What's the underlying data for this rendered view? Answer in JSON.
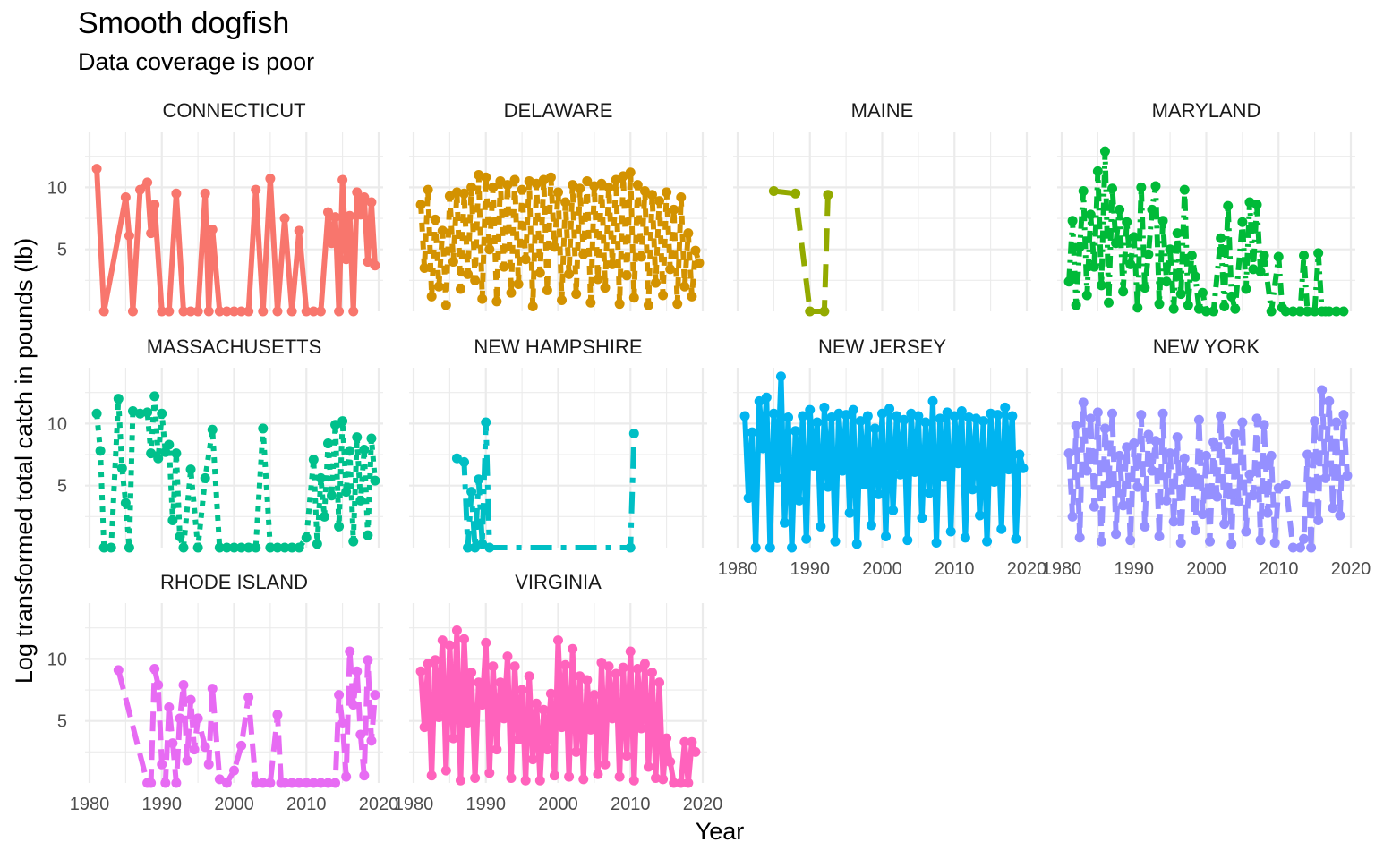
{
  "chart_data": {
    "type": "line",
    "title": "Smooth dogfish",
    "subtitle": "Data coverage is poor",
    "xlabel": "Year",
    "ylabel": "Log transformed  total catch in pounds (lb)",
    "x_ticks": [
      1980,
      1990,
      2000,
      2010,
      2020
    ],
    "y_ticks": [
      5,
      10
    ],
    "xlim": [
      1980,
      2020
    ],
    "ylim": [
      0,
      14.5
    ],
    "grid": true,
    "legend": "none",
    "panels": [
      {
        "name": "CONNECTICUT",
        "color": "#F8766D",
        "dash": "solid",
        "x": [
          1981,
          1982,
          1985,
          1985.5,
          1986,
          1987,
          1988,
          1988.5,
          1989,
          1990,
          1991,
          1992,
          1993,
          1994,
          1995,
          1996,
          1996.5,
          1997,
          1998,
          1999,
          2000,
          2001,
          2002,
          2003,
          2004,
          2005,
          2006,
          2007,
          2008,
          2009,
          2010,
          2011,
          2012,
          2013,
          2013.5,
          2014,
          2014.5,
          2015,
          2015.5,
          2016,
          2016.5,
          2017,
          2017.5,
          2018,
          2018.5,
          2019,
          2019.5
        ],
        "y": [
          11.5,
          0,
          9.2,
          6.1,
          0,
          9.8,
          10.4,
          6.3,
          8.6,
          0,
          0,
          9.5,
          0,
          0,
          0,
          9.5,
          0,
          6.6,
          0,
          0,
          0,
          0,
          0,
          9.8,
          0,
          10.7,
          0,
          7.5,
          0,
          6.5,
          0,
          0,
          0,
          8,
          5.5,
          7.6,
          0,
          10.6,
          4.2,
          7.7,
          0,
          9.6,
          7.8,
          9.2,
          4,
          8.8,
          3.7
        ]
      },
      {
        "name": "DELAWARE",
        "color": "#D39200",
        "dash": "10,10",
        "x": [
          1981,
          1981.5,
          1982,
          1982.5,
          1983,
          1983.5,
          1984,
          1984.5,
          1985,
          1985.5,
          1986,
          1986.5,
          1987,
          1987.5,
          1988,
          1988.5,
          1989,
          1989.5,
          1990,
          1990.5,
          1991,
          1991.5,
          1992,
          1992.5,
          1993,
          1993.5,
          1994,
          1994.5,
          1995,
          1995.5,
          1996,
          1996.5,
          1997,
          1997.5,
          1998,
          1998.5,
          1999,
          1999.5,
          2000,
          2000.5,
          2001,
          2001.5,
          2002,
          2002.5,
          2003,
          2003.5,
          2004,
          2004.5,
          2005,
          2005.5,
          2006,
          2006.5,
          2007,
          2007.5,
          2008,
          2008.5,
          2009,
          2009.5,
          2010,
          2010.5,
          2011,
          2011.5,
          2012,
          2012.5,
          2013,
          2013.5,
          2014,
          2014.5,
          2015,
          2015.5,
          2016,
          2016.5,
          2017,
          2017.5,
          2018,
          2018.5,
          2019,
          2019.5
        ],
        "y": [
          8.6,
          3.5,
          9.8,
          1.2,
          7.4,
          2,
          6.5,
          0.5,
          9.3,
          4,
          9.6,
          1.8,
          9.5,
          3,
          10,
          2.5,
          11,
          1,
          10.8,
          5,
          10,
          0.8,
          10.5,
          3.6,
          10.2,
          1.5,
          10.6,
          2.2,
          9.8,
          4.2,
          10.5,
          0.4,
          10.3,
          3.1,
          10.6,
          1.7,
          10.8,
          5.2,
          9.6,
          0.9,
          8.8,
          3,
          10.2,
          1.4,
          9.9,
          4.6,
          10.5,
          0.7,
          10.1,
          2.6,
          10.3,
          1.9,
          10,
          3.8,
          10.6,
          0.6,
          10.9,
          2.9,
          11.2,
          1.1,
          10.2,
          4.4,
          9.7,
          0.5,
          9.4,
          2.3,
          8.9,
          1.3,
          9.6,
          3.4,
          8.2,
          0.6,
          9.2,
          2,
          6.3,
          1.2,
          4.9,
          3.9
        ]
      },
      {
        "name": "MAINE",
        "color": "#93AA00",
        "dash": "26,14",
        "x": [
          1985,
          1988,
          1990,
          1992,
          1992.5
        ],
        "y": [
          9.7,
          9.5,
          0,
          0,
          9.4
        ]
      },
      {
        "name": "MARYLAND",
        "color": "#00BA38",
        "dash": "14,7,3,7",
        "x": [
          1981,
          1981.5,
          1982,
          1982.5,
          1983,
          1983.5,
          1984,
          1984.5,
          1985,
          1985.5,
          1986,
          1986.5,
          1987,
          1987.5,
          1988,
          1988.5,
          1989,
          1989.5,
          1990,
          1990.5,
          1991,
          1991.5,
          1992,
          1992.5,
          1993,
          1993.5,
          1994,
          1994.5,
          1995,
          1995.5,
          1996,
          1996.5,
          1997,
          1997.5,
          1998,
          1998.5,
          1999,
          1999.5,
          2000,
          2001,
          2002,
          2002.5,
          2003,
          2003.5,
          2004,
          2005,
          2005.5,
          2006,
          2006.5,
          2007,
          2007.5,
          2008,
          2009,
          2010,
          2010.5,
          2011,
          2012,
          2013,
          2013.5,
          2014,
          2015,
          2015.5,
          2016,
          2016.5,
          2017,
          2018,
          2019
        ],
        "y": [
          2.4,
          7.3,
          0.5,
          5.2,
          9.7,
          1.3,
          7.8,
          3.6,
          11.3,
          2.1,
          12.9,
          0.7,
          9.9,
          5.5,
          8.2,
          1.6,
          7.2,
          3.8,
          6,
          0.3,
          10,
          1.9,
          4.6,
          8.2,
          10.1,
          0.6,
          7.3,
          2.4,
          5,
          0.2,
          6.3,
          1.4,
          9.8,
          0.5,
          4.5,
          2.8,
          0.2,
          1.5,
          0,
          0,
          5.9,
          0.4,
          8.5,
          1.2,
          0.2,
          7.2,
          1.8,
          8.8,
          3.4,
          8.6,
          3.2,
          4.5,
          0,
          4.4,
          0.3,
          0,
          0,
          0,
          4.5,
          0,
          0,
          4.7,
          0,
          0,
          0,
          0,
          0
        ]
      },
      {
        "name": "MASSACHUSETTS",
        "color": "#00C08B",
        "dash": "6,7",
        "x": [
          1981,
          1981.5,
          1982,
          1983,
          1984,
          1984.5,
          1985,
          1985.5,
          1986,
          1987,
          1988,
          1988.5,
          1989,
          1989.5,
          1990,
          1990.5,
          1991,
          1991.5,
          1992,
          1992.5,
          1993,
          1994,
          1995,
          1996,
          1997,
          1998,
          1999,
          2000,
          2001,
          2002,
          2003,
          2004,
          2005,
          2006,
          2007,
          2008,
          2009,
          2010,
          2011,
          2011.5,
          2012,
          2012.5,
          2013,
          2013.5,
          2014,
          2014.5,
          2015,
          2015.5,
          2016,
          2016.5,
          2017,
          2017.5,
          2018,
          2018.5,
          2019,
          2019.5
        ],
        "y": [
          10.8,
          7.8,
          0,
          0,
          12,
          6.4,
          3.6,
          0,
          11,
          10.8,
          10.9,
          7.6,
          12.2,
          7.2,
          10.8,
          7.7,
          8.3,
          2.2,
          7.6,
          0.9,
          0,
          6.3,
          0,
          5.6,
          9.5,
          0,
          0,
          0,
          0,
          0,
          0,
          9.6,
          0,
          0,
          0,
          0,
          0,
          0.8,
          7.1,
          0.3,
          5.6,
          2.5,
          8.4,
          4.2,
          9.9,
          1.7,
          10.2,
          4.5,
          7.8,
          0.5,
          8.9,
          3.8,
          7.9,
          1,
          8.8,
          5.4
        ]
      },
      {
        "name": "NEW HAMPSHIRE",
        "color": "#00BFC4",
        "dash": "24,10,6,10",
        "x": [
          1986,
          1987,
          1987.5,
          1988,
          1988.5,
          1989,
          1989.5,
          1990,
          1990.5,
          2010,
          2010.5
        ],
        "y": [
          7.2,
          6.9,
          0,
          4.5,
          0,
          5.5,
          0.3,
          10.1,
          0,
          0,
          9.2
        ]
      },
      {
        "name": "NEW JERSEY",
        "color": "#00B4F0",
        "dash": "solid",
        "x": [
          1981,
          1981.5,
          1982,
          1982.5,
          1983,
          1983.5,
          1984,
          1984.5,
          1985,
          1985.5,
          1986,
          1986.5,
          1987,
          1987.5,
          1988,
          1988.5,
          1989,
          1989.5,
          1990,
          1990.5,
          1991,
          1991.5,
          1992,
          1992.5,
          1993,
          1993.5,
          1994,
          1994.5,
          1995,
          1995.5,
          1996,
          1996.5,
          1997,
          1997.5,
          1998,
          1998.5,
          1999,
          1999.5,
          2000,
          2000.5,
          2001,
          2001.5,
          2002,
          2002.5,
          2003,
          2003.5,
          2004,
          2004.5,
          2005,
          2005.5,
          2006,
          2006.5,
          2007,
          2007.5,
          2008,
          2008.5,
          2009,
          2009.5,
          2010,
          2010.5,
          2011,
          2011.5,
          2012,
          2012.5,
          2013,
          2013.5,
          2014,
          2014.5,
          2015,
          2015.5,
          2016,
          2016.5,
          2017,
          2017.5,
          2018,
          2018.5,
          2019,
          2019.5
        ],
        "y": [
          10.6,
          4,
          9.3,
          0,
          11.8,
          8,
          12.1,
          0,
          10.8,
          5.6,
          13.8,
          2,
          10.5,
          0,
          9.4,
          3.8,
          10.6,
          0.7,
          11.1,
          6.6,
          10.1,
          1.7,
          11.3,
          4.9,
          10.5,
          0.5,
          10.8,
          6.2,
          10.7,
          2.8,
          11.1,
          0.3,
          10.2,
          5.1,
          10.6,
          1.8,
          9.6,
          4.3,
          10.8,
          0.9,
          11.2,
          3,
          10.6,
          5.9,
          10.3,
          0.6,
          10.8,
          6.1,
          10.6,
          2.4,
          10.1,
          4.4,
          11.8,
          0.4,
          10.4,
          5.7,
          10.9,
          1.3,
          10.6,
          6.8,
          11,
          0.8,
          10.5,
          4.7,
          10.4,
          2.6,
          10.2,
          0.5,
          10.8,
          5.3,
          10.7,
          1.5,
          11.3,
          6.3,
          10.6,
          0.7,
          7.5,
          6.4
        ]
      },
      {
        "name": "NEW YORK",
        "color": "#9590FF",
        "dash": "18,10",
        "x": [
          1981,
          1981.5,
          1982,
          1982.5,
          1983,
          1983.5,
          1984,
          1984.5,
          1985,
          1985.5,
          1986,
          1986.5,
          1987,
          1987.5,
          1988,
          1988.5,
          1989,
          1989.5,
          1990,
          1990.5,
          1991,
          1991.5,
          1992,
          1992.5,
          1993,
          1993.5,
          1994,
          1994.5,
          1995,
          1995.5,
          1996,
          1996.5,
          1997,
          1997.5,
          1998,
          1998.5,
          1999,
          1999.5,
          2000,
          2000.5,
          2001,
          2001.5,
          2002,
          2002.5,
          2003,
          2003.5,
          2004,
          2004.5,
          2005,
          2005.5,
          2006,
          2006.5,
          2007,
          2007.5,
          2008,
          2008.5,
          2009,
          2009.5,
          2010,
          2011,
          2012,
          2013,
          2013.5,
          2014,
          2014.5,
          2015,
          2015.5,
          2016,
          2016.5,
          2017,
          2017.5,
          2018,
          2018.5,
          2019,
          2019.5
        ],
        "y": [
          7.6,
          2.5,
          9.8,
          0.8,
          11.7,
          6.2,
          10.4,
          3.3,
          10.9,
          0.5,
          9.6,
          5.2,
          10.8,
          1.1,
          7.4,
          3.4,
          8.1,
          0.6,
          8.4,
          4.9,
          10.7,
          1.7,
          9.1,
          6.2,
          8.6,
          0.9,
          10.8,
          3.8,
          7.6,
          2.1,
          8.9,
          0.4,
          7.2,
          5.3,
          6.1,
          1.4,
          10.3,
          2.7,
          7.4,
          0.5,
          8.5,
          4.1,
          10.6,
          1.9,
          8.6,
          0.3,
          9.2,
          3.7,
          10.1,
          1.3,
          5.9,
          4.2,
          10.4,
          0.6,
          9.9,
          2.8,
          7.4,
          0.4,
          4.8,
          5.1,
          0,
          0,
          0.7,
          7.5,
          0,
          10.2,
          2.2,
          12.7,
          5.6,
          11.8,
          3.2,
          10.1,
          2.6,
          10.7,
          5.8
        ]
      },
      {
        "name": "RHODE ISLAND",
        "color": "#E76BF3",
        "dash": "22,10",
        "x": [
          1984,
          1988,
          1988.5,
          1989,
          1989.5,
          1990,
          1990.5,
          1991,
          1991.5,
          1992,
          1992.5,
          1993,
          1993.5,
          1994,
          1994.5,
          1995,
          1996,
          1996.5,
          1997,
          1998,
          1999,
          2000,
          2001,
          2002,
          2003,
          2004,
          2005,
          2006,
          2006.5,
          2007,
          2008,
          2009,
          2010,
          2011,
          2012,
          2013,
          2014,
          2014.5,
          2015,
          2015.5,
          2016,
          2016.5,
          2017,
          2017.5,
          2018,
          2018.5,
          2019,
          2019.5
        ],
        "y": [
          9.1,
          0,
          0,
          9.2,
          7.9,
          1.5,
          0,
          6.1,
          3.2,
          0,
          5.2,
          7.9,
          1.8,
          6.7,
          2.7,
          5.2,
          2.9,
          1.5,
          7.6,
          0.3,
          0,
          1,
          3,
          6.9,
          0,
          0,
          0,
          5.5,
          0,
          0,
          0,
          0,
          0,
          0,
          0,
          0,
          0,
          7.1,
          4.8,
          0.5,
          10.6,
          6.3,
          9,
          3.9,
          0.6,
          9.9,
          3.4,
          7.1
        ]
      },
      {
        "name": "VIRGINIA",
        "color": "#FF62BC",
        "dash": "solid",
        "x": [
          1981,
          1981.5,
          1982,
          1982.5,
          1983,
          1983.5,
          1984,
          1984.5,
          1985,
          1985.5,
          1986,
          1986.5,
          1987,
          1987.5,
          1988,
          1988.5,
          1989,
          1989.5,
          1990,
          1990.5,
          1991,
          1991.5,
          1992,
          1992.5,
          1993,
          1993.5,
          1994,
          1994.5,
          1995,
          1995.5,
          1996,
          1996.5,
          1997,
          1997.5,
          1998,
          1998.5,
          1999,
          1999.5,
          2000,
          2000.5,
          2001,
          2001.5,
          2002,
          2002.5,
          2003,
          2003.5,
          2004,
          2004.5,
          2005,
          2005.5,
          2006,
          2006.5,
          2007,
          2007.5,
          2008,
          2008.5,
          2009,
          2009.5,
          2010,
          2010.5,
          2011,
          2011.5,
          2012,
          2012.5,
          2013,
          2013.5,
          2014,
          2014.5,
          2015,
          2015.5,
          2016,
          2017,
          2017.5,
          2018,
          2018.5,
          2019
        ],
        "y": [
          9,
          4.5,
          9.6,
          0.6,
          9.9,
          5.3,
          11.5,
          1,
          11.1,
          3.6,
          12.3,
          0.2,
          11.6,
          4.8,
          8.9,
          0.4,
          8.1,
          6.3,
          11.3,
          0.8,
          9.4,
          2.7,
          8.1,
          5.2,
          10.2,
          0.4,
          9.4,
          3.5,
          7.5,
          0.2,
          8.6,
          1.9,
          6.4,
          0.2,
          5.9,
          2.7,
          7.2,
          0.6,
          11.5,
          4.5,
          9.5,
          0.5,
          10.8,
          2.5,
          8.6,
          0.3,
          8.3,
          4.3,
          7.1,
          0.7,
          9.7,
          1.5,
          9.4,
          5.2,
          8.8,
          0.5,
          9.3,
          2.2,
          10.6,
          0.2,
          9.2,
          4.4,
          9.6,
          1.3,
          8.9,
          0.4,
          8.1,
          0.3,
          3.6,
          1.7,
          0,
          0,
          3.3,
          0,
          3.3,
          2.5
        ]
      }
    ]
  }
}
